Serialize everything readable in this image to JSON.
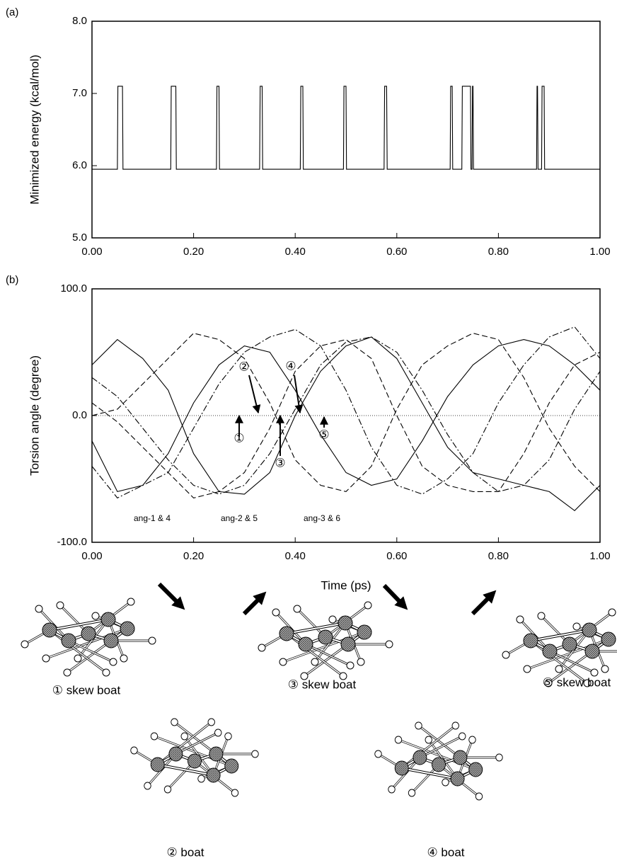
{
  "chart_data": [
    {
      "type": "line",
      "panel_label": "(a)",
      "ylabel": "Minimized energy (kcal/mol)",
      "x": [
        0,
        0.05,
        0.051,
        0.06,
        0.061,
        0.155,
        0.156,
        0.165,
        0.166,
        0.245,
        0.246,
        0.25,
        0.251,
        0.33,
        0.331,
        0.335,
        0.336,
        0.41,
        0.411,
        0.415,
        0.416,
        0.495,
        0.496,
        0.5,
        0.501,
        0.575,
        0.576,
        0.58,
        0.581,
        0.705,
        0.706,
        0.709,
        0.71,
        0.728,
        0.729,
        0.745,
        0.746,
        0.748,
        0.749,
        0.75,
        0.751,
        0.875,
        0.876,
        0.877,
        0.878,
        0.885,
        0.886,
        0.89,
        0.891,
        1.0
      ],
      "series": [
        {
          "color": "#000000",
          "dash": "solid",
          "values": [
            5.95,
            5.95,
            7.1,
            7.1,
            5.95,
            5.95,
            7.1,
            7.1,
            5.95,
            5.95,
            7.1,
            7.1,
            5.95,
            5.95,
            7.1,
            7.1,
            5.95,
            5.95,
            7.1,
            7.1,
            5.95,
            5.95,
            7.1,
            7.1,
            5.95,
            5.95,
            7.1,
            7.1,
            5.95,
            5.95,
            7.1,
            7.1,
            5.95,
            5.95,
            7.1,
            7.1,
            5.95,
            5.95,
            7.1,
            7.1,
            5.95,
            5.95,
            7.1,
            7.1,
            5.95,
            5.95,
            7.1,
            7.1,
            5.95,
            5.95
          ]
        }
      ],
      "xlim": [
        0,
        1
      ],
      "ylim": [
        5,
        8
      ],
      "xticks": [
        {
          "value": 0,
          "label": "0.00"
        },
        {
          "value": 0.2,
          "label": "0.20"
        },
        {
          "value": 0.4,
          "label": "0.40"
        },
        {
          "value": 0.6,
          "label": "0.60"
        },
        {
          "value": 0.8,
          "label": "0.80"
        },
        {
          "value": 1,
          "label": "1.00"
        }
      ],
      "yticks": [
        {
          "value": 5,
          "label": "5.0"
        },
        {
          "value": 6,
          "label": "6.0"
        },
        {
          "value": 7,
          "label": "7.0"
        },
        {
          "value": 8,
          "label": "8.0"
        }
      ]
    },
    {
      "type": "line",
      "panel_label": "(b)",
      "ylabel": "Torsion angle (degree)",
      "xlabel": "Time (ps)",
      "x": [
        0,
        0.05,
        0.1,
        0.15,
        0.2,
        0.25,
        0.3,
        0.35,
        0.4,
        0.45,
        0.5,
        0.55,
        0.6,
        0.65,
        0.7,
        0.75,
        0.8,
        0.85,
        0.9,
        0.95,
        1.0
      ],
      "series": [
        {
          "color": "#000000",
          "dash": "solid",
          "values": [
            40,
            60,
            45,
            20,
            -30,
            -60,
            -62,
            -45,
            0,
            35,
            55,
            62,
            45,
            10,
            -25,
            -45,
            -50,
            -55,
            -60,
            -75,
            -55
          ]
        },
        {
          "color": "#000000",
          "dash": "solid",
          "values": [
            -20,
            -60,
            -55,
            -30,
            10,
            40,
            55,
            50,
            20,
            -15,
            -45,
            -55,
            -50,
            -20,
            15,
            40,
            55,
            60,
            55,
            40,
            20
          ]
        },
        {
          "color": "#000000",
          "dash": "dashed",
          "values": [
            0,
            5,
            25,
            45,
            65,
            60,
            45,
            10,
            -35,
            -55,
            -60,
            -40,
            5,
            40,
            55,
            65,
            60,
            30,
            -10,
            -40,
            -60
          ]
        },
        {
          "color": "#000000",
          "dash": "dashed",
          "values": [
            10,
            -5,
            -25,
            -45,
            -65,
            -60,
            -45,
            -10,
            35,
            55,
            60,
            45,
            0,
            -40,
            -55,
            -60,
            -60,
            -30,
            10,
            40,
            50
          ]
        },
        {
          "color": "#000000",
          "dash": "dashdot",
          "values": [
            -40,
            -65,
            -55,
            -45,
            -10,
            25,
            50,
            62,
            68,
            55,
            20,
            -25,
            -55,
            -62,
            -50,
            -30,
            10,
            40,
            62,
            70,
            45
          ]
        },
        {
          "color": "#000000",
          "dash": "dashdot",
          "values": [
            30,
            15,
            -10,
            -35,
            -55,
            -62,
            -55,
            -30,
            5,
            40,
            58,
            62,
            50,
            20,
            -15,
            -45,
            -60,
            -55,
            -35,
            5,
            35
          ]
        }
      ],
      "reference_line": 0,
      "xlim": [
        0,
        1
      ],
      "ylim": [
        -100,
        100
      ],
      "xticks": [
        {
          "value": 0,
          "label": "0.00"
        },
        {
          "value": 0.2,
          "label": "0.20"
        },
        {
          "value": 0.4,
          "label": "0.40"
        },
        {
          "value": 0.6,
          "label": "0.60"
        },
        {
          "value": 0.8,
          "label": "0.80"
        },
        {
          "value": 1,
          "label": "1.00"
        }
      ],
      "yticks": [
        {
          "value": -100,
          "label": "-100.0"
        },
        {
          "value": 0,
          "label": "0.0"
        },
        {
          "value": 100,
          "label": "100.0"
        }
      ],
      "annotations": [
        "①",
        "②",
        "③",
        "④",
        "⑤",
        "ang-1 & 4",
        "ang-2 & 5",
        "ang-3 & 6"
      ]
    }
  ],
  "diagram": {
    "structures": [
      "① skew boat",
      "② boat",
      "③ skew boat",
      "④ boat",
      "⑤ skew boat"
    ]
  }
}
